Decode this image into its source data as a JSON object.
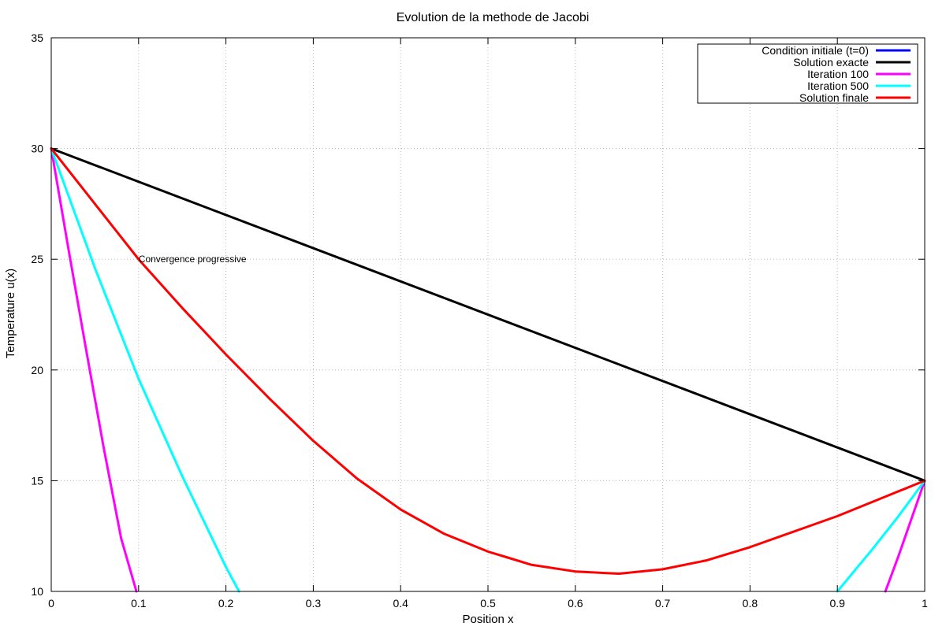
{
  "chart_data": {
    "type": "line",
    "title": "Evolution de la methode de Jacobi",
    "xlabel": "Position x",
    "ylabel": "Temperature u(x)",
    "xlim": [
      0,
      1
    ],
    "ylim": [
      10,
      35
    ],
    "xticks": [
      0,
      0.1,
      0.2,
      0.3,
      0.4,
      0.5,
      0.6,
      0.7,
      0.8,
      0.9,
      1
    ],
    "xtick_labels": [
      "0",
      "0.1",
      "0.2",
      "0.3",
      "0.4",
      "0.5",
      "0.6",
      "0.7",
      "0.8",
      "0.9",
      "1"
    ],
    "yticks": [
      10,
      15,
      20,
      25,
      30,
      35
    ],
    "ytick_labels": [
      "10",
      "15",
      "20",
      "25",
      "30",
      "35"
    ],
    "grid": true,
    "legend_position": "top-right",
    "annotations": [
      {
        "text": "Convergence progressive",
        "x": 0.1,
        "y": 25
      }
    ],
    "series": [
      {
        "name": "Condition initiale (t=0)",
        "color": "#0000ff",
        "x": [],
        "y": []
      },
      {
        "name": "Solution exacte",
        "color": "#000000",
        "x": [
          0,
          1
        ],
        "y": [
          30,
          15
        ]
      },
      {
        "name": "Iteration 100",
        "color": "#ff00ff",
        "x": [
          0,
          0.02,
          0.04,
          0.06,
          0.08,
          0.0975,
          0.955,
          0.97,
          0.985,
          1
        ],
        "y": [
          30,
          25.4,
          20.9,
          16.5,
          12.4,
          10,
          10,
          11.6,
          13.3,
          15
        ]
      },
      {
        "name": "Iteration 500",
        "color": "#00ffff",
        "x": [
          0,
          0.05,
          0.1,
          0.15,
          0.2,
          0.215,
          0.9,
          0.94,
          0.97,
          1
        ],
        "y": [
          30,
          24.6,
          19.6,
          15.2,
          11.1,
          10,
          10,
          11.9,
          13.4,
          15
        ]
      },
      {
        "name": "Solution finale",
        "color": "#ff0000",
        "x": [
          0,
          0.05,
          0.1,
          0.15,
          0.2,
          0.25,
          0.3,
          0.35,
          0.4,
          0.45,
          0.5,
          0.55,
          0.6,
          0.65,
          0.7,
          0.75,
          0.8,
          0.85,
          0.9,
          0.95,
          1
        ],
        "y": [
          30,
          27.5,
          25.0,
          22.8,
          20.7,
          18.7,
          16.8,
          15.1,
          13.7,
          12.6,
          11.8,
          11.2,
          10.9,
          10.8,
          11.0,
          11.4,
          12.0,
          12.7,
          13.4,
          14.2,
          15.0
        ]
      }
    ]
  }
}
